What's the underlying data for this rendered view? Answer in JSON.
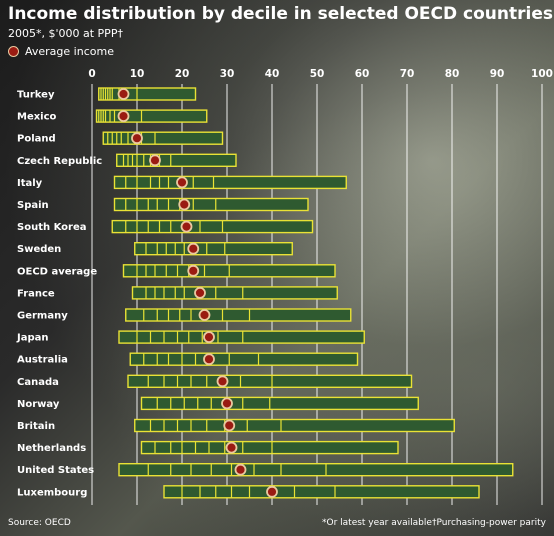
{
  "title": "Income distribution by decile in selected OECD countries",
  "subtitle": "2005*, $'000 at PPP†",
  "legend_label": "Average income",
  "source": "Source: OECD",
  "notes": [
    "*Or latest year available",
    "†Purchasing-power parity"
  ],
  "colors": {
    "bar_fill": "#2f5a30",
    "bar_border": "#e9e235",
    "dot_fill": "#9a1b12",
    "dot_ring": "#e9c9a0",
    "grid": "#ffffff"
  },
  "chart_data": {
    "type": "bar",
    "title": "Income distribution by decile in selected OECD countries",
    "subtitle": "2005*, $'000 at PPP†",
    "xlim": [
      0,
      100
    ],
    "x_ticks": [
      0,
      10,
      20,
      30,
      40,
      50,
      60,
      70,
      80,
      90,
      100
    ],
    "grid": true,
    "legend": "top-left",
    "categories": [
      "Turkey",
      "Mexico",
      "Poland",
      "Czech Republic",
      "Italy",
      "Spain",
      "South Korea",
      "Sweden",
      "OECD average",
      "France",
      "Germany",
      "Japan",
      "Australia",
      "Canada",
      "Norway",
      "Britain",
      "Netherlands",
      "United States",
      "Luxembourg"
    ],
    "series": [
      {
        "name": "Average income",
        "values": [
          7,
          7,
          10,
          14,
          20,
          20.5,
          21,
          22.5,
          22.5,
          24,
          25,
          26,
          26,
          29,
          30,
          30.5,
          31,
          33,
          40
        ]
      }
    ],
    "deciles": [
      [
        1.5,
        2,
        2.5,
        3,
        3.5,
        4,
        4.5,
        6,
        10,
        23
      ],
      [
        1,
        1.5,
        2,
        2.5,
        3,
        4,
        5,
        7,
        11,
        25.5
      ],
      [
        2.5,
        3.5,
        4.5,
        5.5,
        6.5,
        8,
        9.5,
        11,
        14,
        29
      ],
      [
        5.5,
        7,
        8,
        9,
        10,
        11.5,
        13,
        15,
        17.5,
        32
      ],
      [
        5,
        7.5,
        10,
        13,
        15,
        17,
        19.5,
        22.5,
        27,
        56.5
      ],
      [
        5,
        7.5,
        10,
        12.5,
        14.5,
        17,
        19.5,
        22.5,
        27.5,
        48
      ],
      [
        4.5,
        7.5,
        10,
        12.5,
        15,
        17.5,
        20.5,
        24,
        29,
        49
      ],
      [
        9.5,
        12,
        14.5,
        16.5,
        18.5,
        20.5,
        23,
        25.5,
        29.5,
        44.5
      ],
      [
        7,
        10,
        12,
        14,
        16.5,
        19,
        21.5,
        25,
        30.5,
        54
      ],
      [
        9,
        12,
        14,
        16,
        18.5,
        20.5,
        23.5,
        27.5,
        33.5,
        54.5
      ],
      [
        7.5,
        11.5,
        14.5,
        17,
        19.5,
        22,
        25,
        29,
        35,
        57.5
      ],
      [
        6,
        10,
        13,
        16,
        19,
        21.5,
        24.5,
        28,
        33.5,
        60.5
      ],
      [
        8.5,
        11.5,
        14.5,
        17,
        20,
        23,
        26,
        30.5,
        37,
        59
      ],
      [
        8,
        12.5,
        16,
        19,
        22,
        25.5,
        29,
        33,
        40,
        71
      ],
      [
        11,
        14.5,
        17.5,
        20.5,
        23.5,
        26.5,
        29.5,
        33.5,
        39.5,
        72.5
      ],
      [
        9.5,
        13,
        16,
        19,
        22,
        25.5,
        29.5,
        34.5,
        42,
        80.5
      ],
      [
        11,
        14,
        17.5,
        20,
        23,
        26,
        29.5,
        33.5,
        40,
        68
      ],
      [
        6,
        12.5,
        17.5,
        22,
        26.5,
        31,
        36,
        42,
        52,
        93.5
      ],
      [
        16,
        20,
        24,
        27.5,
        31,
        35,
        39.5,
        45,
        54,
        86
      ]
    ]
  }
}
